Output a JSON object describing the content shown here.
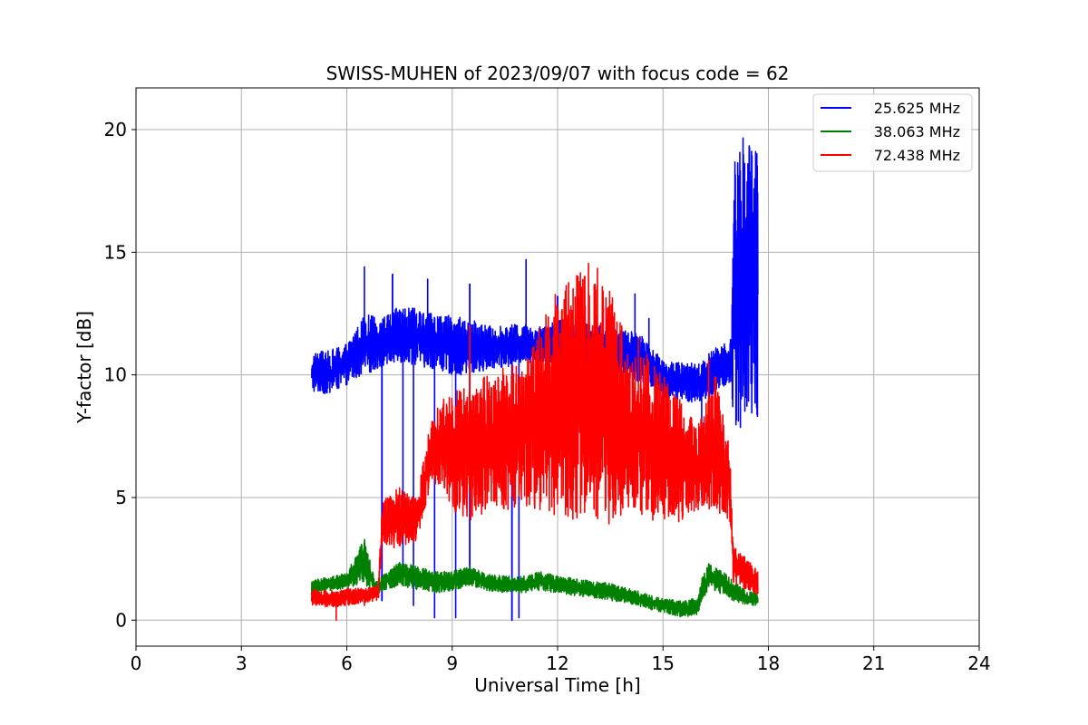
{
  "chart_data": {
    "type": "line",
    "title": "SWISS-MUHEN of 2023/09/07 with focus code = 62",
    "xlabel": "Universal Time [h]",
    "ylabel": "Y-factor [dB]",
    "xlim": [
      0,
      24
    ],
    "ylim": [
      -1.06,
      21.7
    ],
    "xticks": [
      0,
      3,
      6,
      9,
      12,
      15,
      18,
      21,
      24
    ],
    "yticks": [
      0,
      5,
      10,
      15,
      20
    ],
    "grid": true,
    "legend_position": "top-right",
    "series": [
      {
        "name": "25.625 MHz",
        "color": "#0000ff",
        "band": [
          [
            5.0,
            9.3,
            10.9
          ],
          [
            5.5,
            9.2,
            11.0
          ],
          [
            6.0,
            9.6,
            11.3
          ],
          [
            6.5,
            10.0,
            12.5
          ],
          [
            7.0,
            10.3,
            12.3
          ],
          [
            7.5,
            10.5,
            12.8
          ],
          [
            8.0,
            10.4,
            12.7
          ],
          [
            8.5,
            10.2,
            12.5
          ],
          [
            9.0,
            10.0,
            12.4
          ],
          [
            9.5,
            10.0,
            12.3
          ],
          [
            10.0,
            10.2,
            12.0
          ],
          [
            10.5,
            10.3,
            12.0
          ],
          [
            11.0,
            10.5,
            12.1
          ],
          [
            11.5,
            10.5,
            12.0
          ],
          [
            12.0,
            10.5,
            12.3
          ],
          [
            12.5,
            10.2,
            12.3
          ],
          [
            13.0,
            10.2,
            12.0
          ],
          [
            13.5,
            10.0,
            12.0
          ],
          [
            14.0,
            9.8,
            11.8
          ],
          [
            14.5,
            9.7,
            11.6
          ],
          [
            15.0,
            9.0,
            10.6
          ],
          [
            15.5,
            9.0,
            10.5
          ],
          [
            16.0,
            8.8,
            10.5
          ],
          [
            16.5,
            9.2,
            11.2
          ],
          [
            16.95,
            9.6,
            11.5
          ],
          [
            17.0,
            8.0,
            18.5
          ],
          [
            17.2,
            7.8,
            19.5
          ],
          [
            17.4,
            8.0,
            20.4
          ],
          [
            17.6,
            8.1,
            20.1
          ],
          [
            17.7,
            8.2,
            19.9
          ]
        ],
        "spikes": [
          [
            6.5,
            14.4
          ],
          [
            7.3,
            14.1
          ],
          [
            8.3,
            13.9
          ],
          [
            9.5,
            13.7
          ],
          [
            11.1,
            14.7
          ],
          [
            12.0,
            13.2
          ],
          [
            13.3,
            12.8
          ],
          [
            14.2,
            13.3
          ],
          [
            14.6,
            12.3
          ]
        ],
        "dips": [
          [
            7.0,
            0.8
          ],
          [
            7.6,
            1.9
          ],
          [
            7.9,
            0.6
          ],
          [
            8.5,
            0.1
          ],
          [
            9.1,
            0.1
          ],
          [
            9.5,
            1.5
          ],
          [
            10.7,
            0.0
          ],
          [
            10.9,
            0.1
          ],
          [
            15.0,
            4.8
          ],
          [
            16.1,
            5.0
          ]
        ]
      },
      {
        "name": "38.063 MHz",
        "color": "#008000",
        "band": [
          [
            5.0,
            1.0,
            1.6
          ],
          [
            5.5,
            1.2,
            1.8
          ],
          [
            6.0,
            1.3,
            1.9
          ],
          [
            6.5,
            1.5,
            3.4
          ],
          [
            6.8,
            1.0,
            1.6
          ],
          [
            7.2,
            1.3,
            2.0
          ],
          [
            7.5,
            1.4,
            2.4
          ],
          [
            8.0,
            1.2,
            2.2
          ],
          [
            8.5,
            1.1,
            2.0
          ],
          [
            9.0,
            1.2,
            2.0
          ],
          [
            9.5,
            1.4,
            2.2
          ],
          [
            10.0,
            1.2,
            1.9
          ],
          [
            10.5,
            1.1,
            1.8
          ],
          [
            11.0,
            1.1,
            1.8
          ],
          [
            11.5,
            1.2,
            2.0
          ],
          [
            12.0,
            1.1,
            1.8
          ],
          [
            12.5,
            1.0,
            1.7
          ],
          [
            13.0,
            0.9,
            1.6
          ],
          [
            13.5,
            0.8,
            1.5
          ],
          [
            14.0,
            0.7,
            1.3
          ],
          [
            14.5,
            0.5,
            1.1
          ],
          [
            15.0,
            0.3,
            0.9
          ],
          [
            15.5,
            0.1,
            0.8
          ],
          [
            16.0,
            0.2,
            0.9
          ],
          [
            16.1,
            0.7,
            1.7
          ],
          [
            16.3,
            1.3,
            2.3
          ],
          [
            16.7,
            1.0,
            2.0
          ],
          [
            17.0,
            0.8,
            1.6
          ],
          [
            17.4,
            0.6,
            1.2
          ],
          [
            17.7,
            0.6,
            1.1
          ]
        ],
        "spikes": [],
        "dips": []
      },
      {
        "name": "72.438 MHz",
        "color": "#ff0000",
        "band": [
          [
            5.0,
            0.6,
            1.3
          ],
          [
            5.5,
            0.5,
            1.2
          ],
          [
            6.0,
            0.6,
            1.3
          ],
          [
            6.5,
            0.7,
            1.3
          ],
          [
            6.9,
            0.8,
            1.4
          ],
          [
            7.0,
            2.8,
            4.8
          ],
          [
            7.5,
            3.0,
            5.5
          ],
          [
            8.0,
            3.2,
            5.0
          ],
          [
            8.3,
            5.0,
            7.5
          ],
          [
            8.5,
            5.5,
            8.5
          ],
          [
            9.0,
            4.5,
            9.5
          ],
          [
            9.5,
            4.0,
            9.5
          ],
          [
            10.0,
            4.2,
            10.0
          ],
          [
            10.5,
            4.5,
            10.5
          ],
          [
            11.0,
            4.5,
            10.5
          ],
          [
            11.5,
            4.5,
            12.0
          ],
          [
            12.0,
            4.2,
            13.5
          ],
          [
            12.5,
            4.0,
            14.6
          ],
          [
            13.0,
            4.0,
            14.7
          ],
          [
            13.5,
            3.9,
            14.0
          ],
          [
            14.0,
            4.5,
            11.0
          ],
          [
            14.5,
            4.0,
            11.0
          ],
          [
            15.0,
            4.0,
            10.0
          ],
          [
            15.5,
            4.0,
            9.0
          ],
          [
            16.0,
            4.5,
            8.0
          ],
          [
            16.5,
            4.5,
            10.0
          ],
          [
            16.9,
            3.8,
            7.0
          ],
          [
            17.0,
            1.5,
            3.0
          ],
          [
            17.4,
            1.2,
            2.5
          ],
          [
            17.7,
            1.0,
            2.0
          ]
        ],
        "spikes": [
          [
            5.7,
            -0.0
          ],
          [
            6.5,
            0.6
          ],
          [
            9.5,
            12.0
          ],
          [
            14.3,
            11.5
          ],
          [
            16.3,
            10.6
          ]
        ],
        "dips": [
          [
            5.7,
            -0.0
          ]
        ]
      }
    ]
  }
}
